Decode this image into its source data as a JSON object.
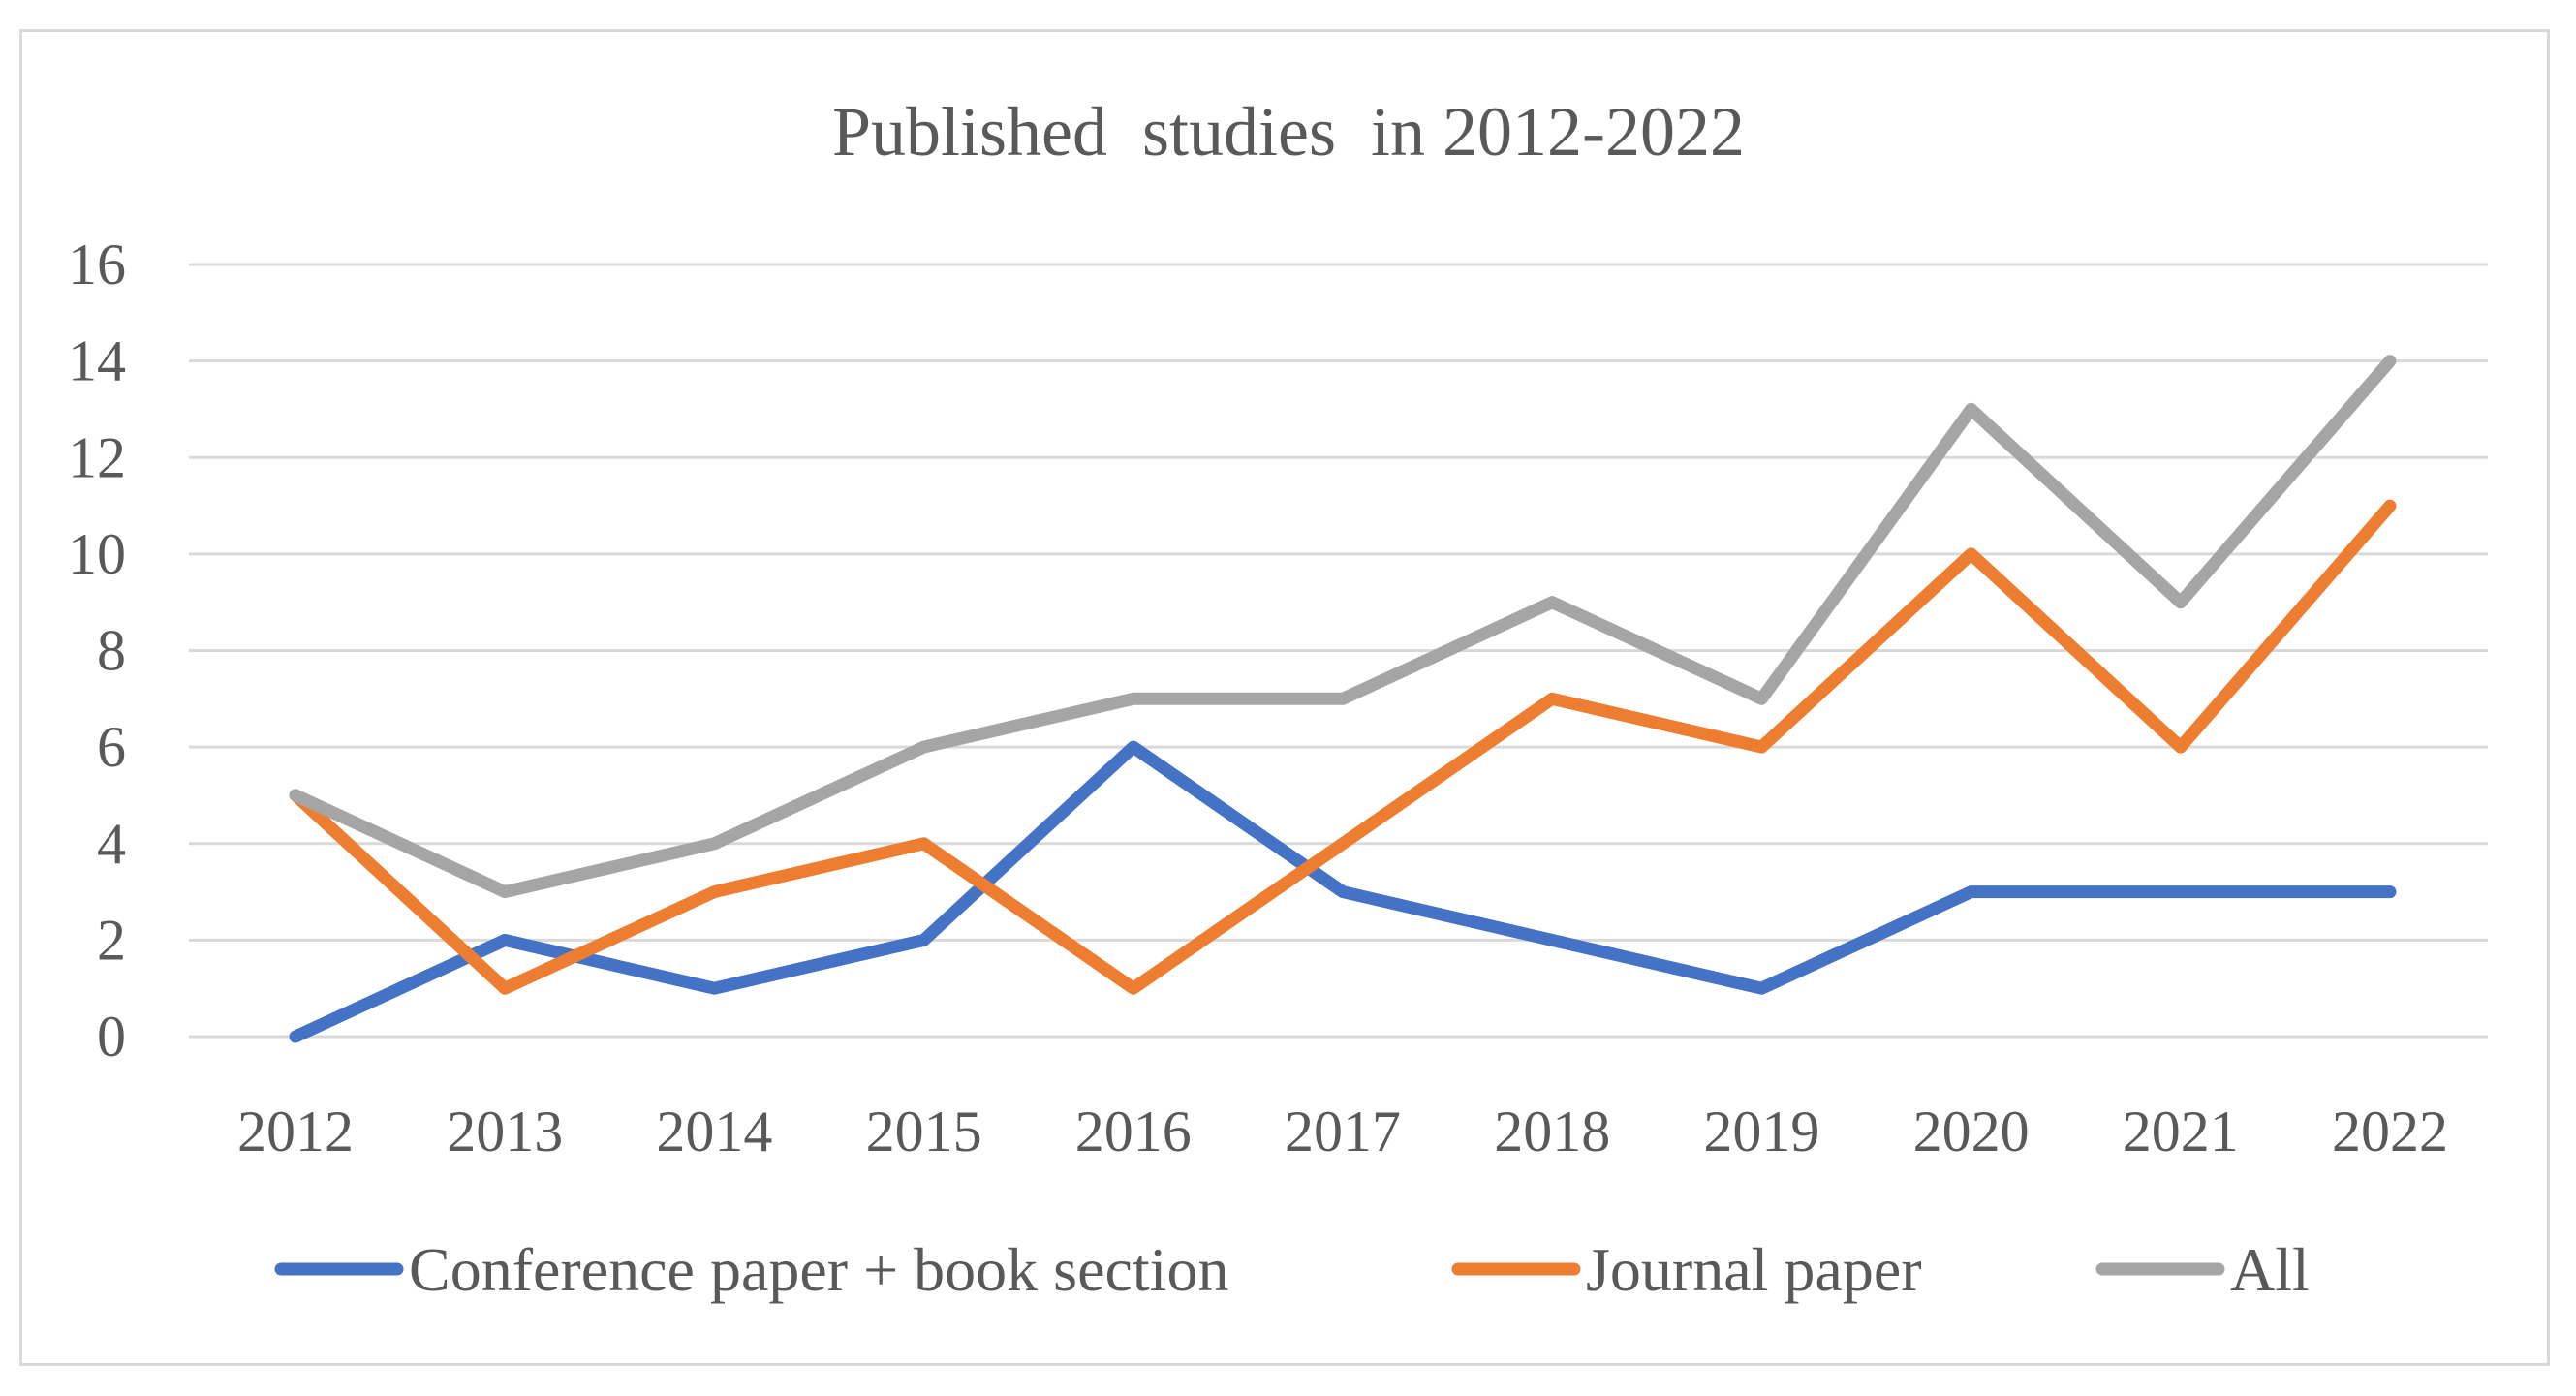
{
  "chart_data": {
    "type": "line",
    "title": "Published  studies  in 2012-2022",
    "xlabel": "",
    "ylabel": "",
    "x": [
      "2012",
      "2013",
      "2014",
      "2015",
      "2016",
      "2017",
      "2018",
      "2019",
      "2020",
      "2021",
      "2022"
    ],
    "ylim": [
      0,
      16
    ],
    "yticks": [
      0,
      2,
      4,
      6,
      8,
      10,
      12,
      14,
      16
    ],
    "grid": true,
    "legend_position": "bottom",
    "series": [
      {
        "name": "Conference paper + book section",
        "color": "#4472c4",
        "values": [
          0,
          2,
          1,
          2,
          6,
          3,
          2,
          1,
          3,
          3,
          3
        ]
      },
      {
        "name": "Journal paper",
        "color": "#ed7d31",
        "values": [
          5,
          1,
          3,
          4,
          1,
          4,
          7,
          6,
          10,
          6,
          11
        ]
      },
      {
        "name": "All",
        "color": "#a5a5a5",
        "values": [
          5,
          3,
          4,
          6,
          7,
          7,
          9,
          7,
          13,
          9,
          14
        ]
      }
    ]
  }
}
